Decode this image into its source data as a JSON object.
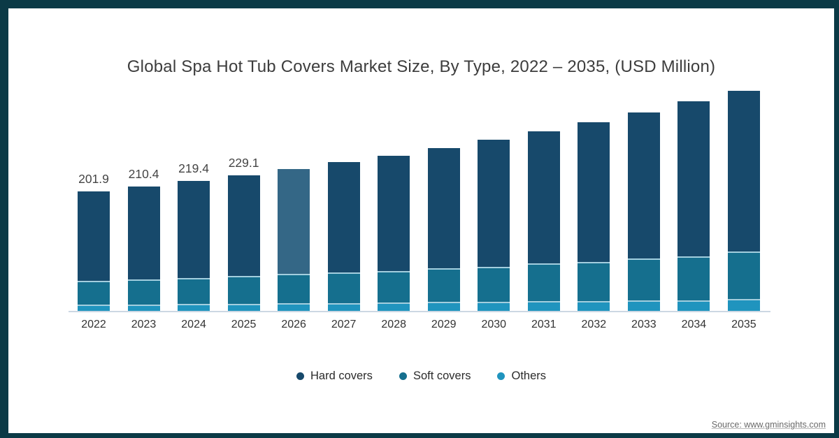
{
  "title": "Global Spa Hot Tub Covers Market Size, By Type, 2022 – 2035, (USD Million)",
  "source_text": "Source: www.gminsights.com",
  "colors": {
    "frame_border": "#0b3a46",
    "background": "#ffffff",
    "hard": "#17496b",
    "hard_highlight": "#346786",
    "soft": "#156f8e",
    "others": "#2094be",
    "separator_line": "#a3cede",
    "axis_line": "#ccd7e3",
    "title_text": "#3d3d3d",
    "label_text": "#454545",
    "source_text": "#6a6a6a"
  },
  "legend": {
    "items": [
      {
        "label": "Hard covers",
        "color": "#17496b"
      },
      {
        "label": "Soft covers",
        "color": "#156f8e"
      },
      {
        "label": "Others",
        "color": "#2094be"
      }
    ]
  },
  "chart_data": {
    "type": "bar",
    "stacked": true,
    "title": "Global Spa Hot Tub Covers Market Size, By Type, 2022 – 2035, (USD Million)",
    "unit": "USD Million",
    "grid": false,
    "legend_position": "bottom",
    "ylim": [
      0,
      390
    ],
    "categories": [
      "2022",
      "2023",
      "2024",
      "2025",
      "2026",
      "2027",
      "2028",
      "2029",
      "2030",
      "2031",
      "2032",
      "2033",
      "2034",
      "2035"
    ],
    "series": [
      {
        "name": "Hard covers",
        "values": [
          151.2,
          156.7,
          163.9,
          169.5,
          177.1,
          185.5,
          195.3,
          203.0,
          213.9,
          222.8,
          235.4,
          246.8,
          261.2,
          271.4
        ]
      },
      {
        "name": "Soft covers",
        "values": [
          40.1,
          42.5,
          43.7,
          47.2,
          49.6,
          51.9,
          53.1,
          56.6,
          59.0,
          63.7,
          66.1,
          70.8,
          74.3,
          80.2
        ]
      },
      {
        "name": "Others",
        "values": [
          10.6,
          11.2,
          11.8,
          12.4,
          13.0,
          13.6,
          14.2,
          15.3,
          15.9,
          16.5,
          17.1,
          17.7,
          18.3,
          20.1
        ]
      }
    ],
    "totals": [
      201.9,
      210.4,
      219.4,
      229.1,
      239.7,
      251.0,
      262.6,
      274.9,
      288.8,
      303.0,
      318.6,
      335.3,
      353.8,
      371.7
    ],
    "data_labels": [
      "201.9",
      "210.4",
      "219.4",
      "229.1",
      "",
      "",
      "",
      "",
      "",
      "",
      "",
      "",
      "",
      ""
    ],
    "highlight": {
      "category": "2026",
      "series": "Hard covers"
    }
  }
}
